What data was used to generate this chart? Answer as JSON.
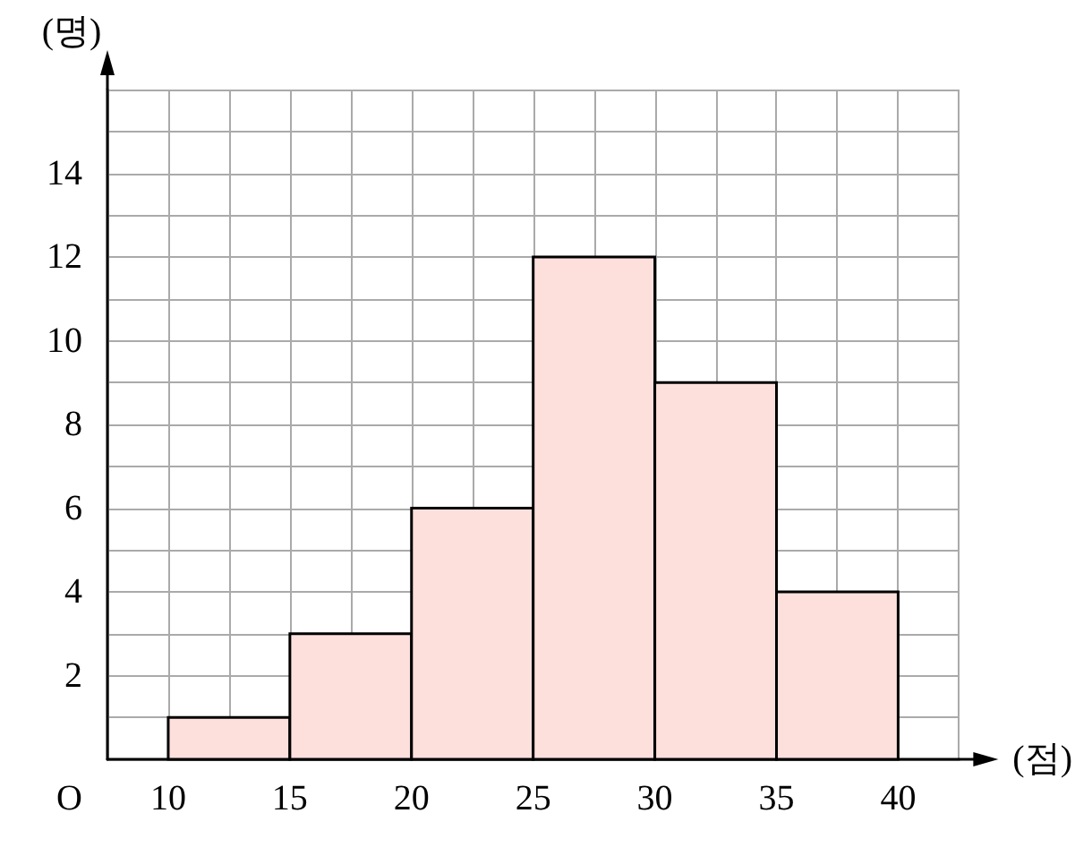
{
  "chart_data": {
    "type": "histogram",
    "bins": [
      10,
      15,
      20,
      25,
      30,
      35,
      40
    ],
    "values": [
      1,
      3,
      6,
      12,
      9,
      4
    ],
    "color": "#fde0dc",
    "xlabel": "(점)",
    "ylabel": "(명)",
    "annotations": [
      "O"
    ],
    "xlim": [
      7.5,
      42.5
    ],
    "xticks": [
      {
        "value": 7.5,
        "label": null
      },
      10,
      {
        "value": 12.5,
        "label": null
      },
      15,
      {
        "value": 17.5,
        "label": null
      },
      20,
      {
        "value": 22.5,
        "label": null
      },
      25,
      {
        "value": 27.5,
        "label": null
      },
      30,
      {
        "value": 32.5,
        "label": null
      },
      35,
      {
        "value": 37.5,
        "label": null
      },
      40,
      {
        "value": 42.5,
        "label": null
      }
    ],
    "ylim": [
      0,
      16
    ],
    "yticks": [
      {
        "value": 0,
        "label": null
      },
      {
        "value": 1,
        "label": null
      },
      2,
      {
        "value": 3,
        "label": null
      },
      4,
      {
        "value": 5,
        "label": null
      },
      6,
      {
        "value": 7,
        "label": null
      },
      8,
      {
        "value": 9,
        "label": null
      },
      10,
      {
        "value": 11,
        "label": null
      },
      12,
      {
        "value": 13,
        "label": null
      },
      14,
      {
        "value": 15,
        "label": null
      },
      {
        "value": 16,
        "label": null
      }
    ],
    "grid": true
  }
}
